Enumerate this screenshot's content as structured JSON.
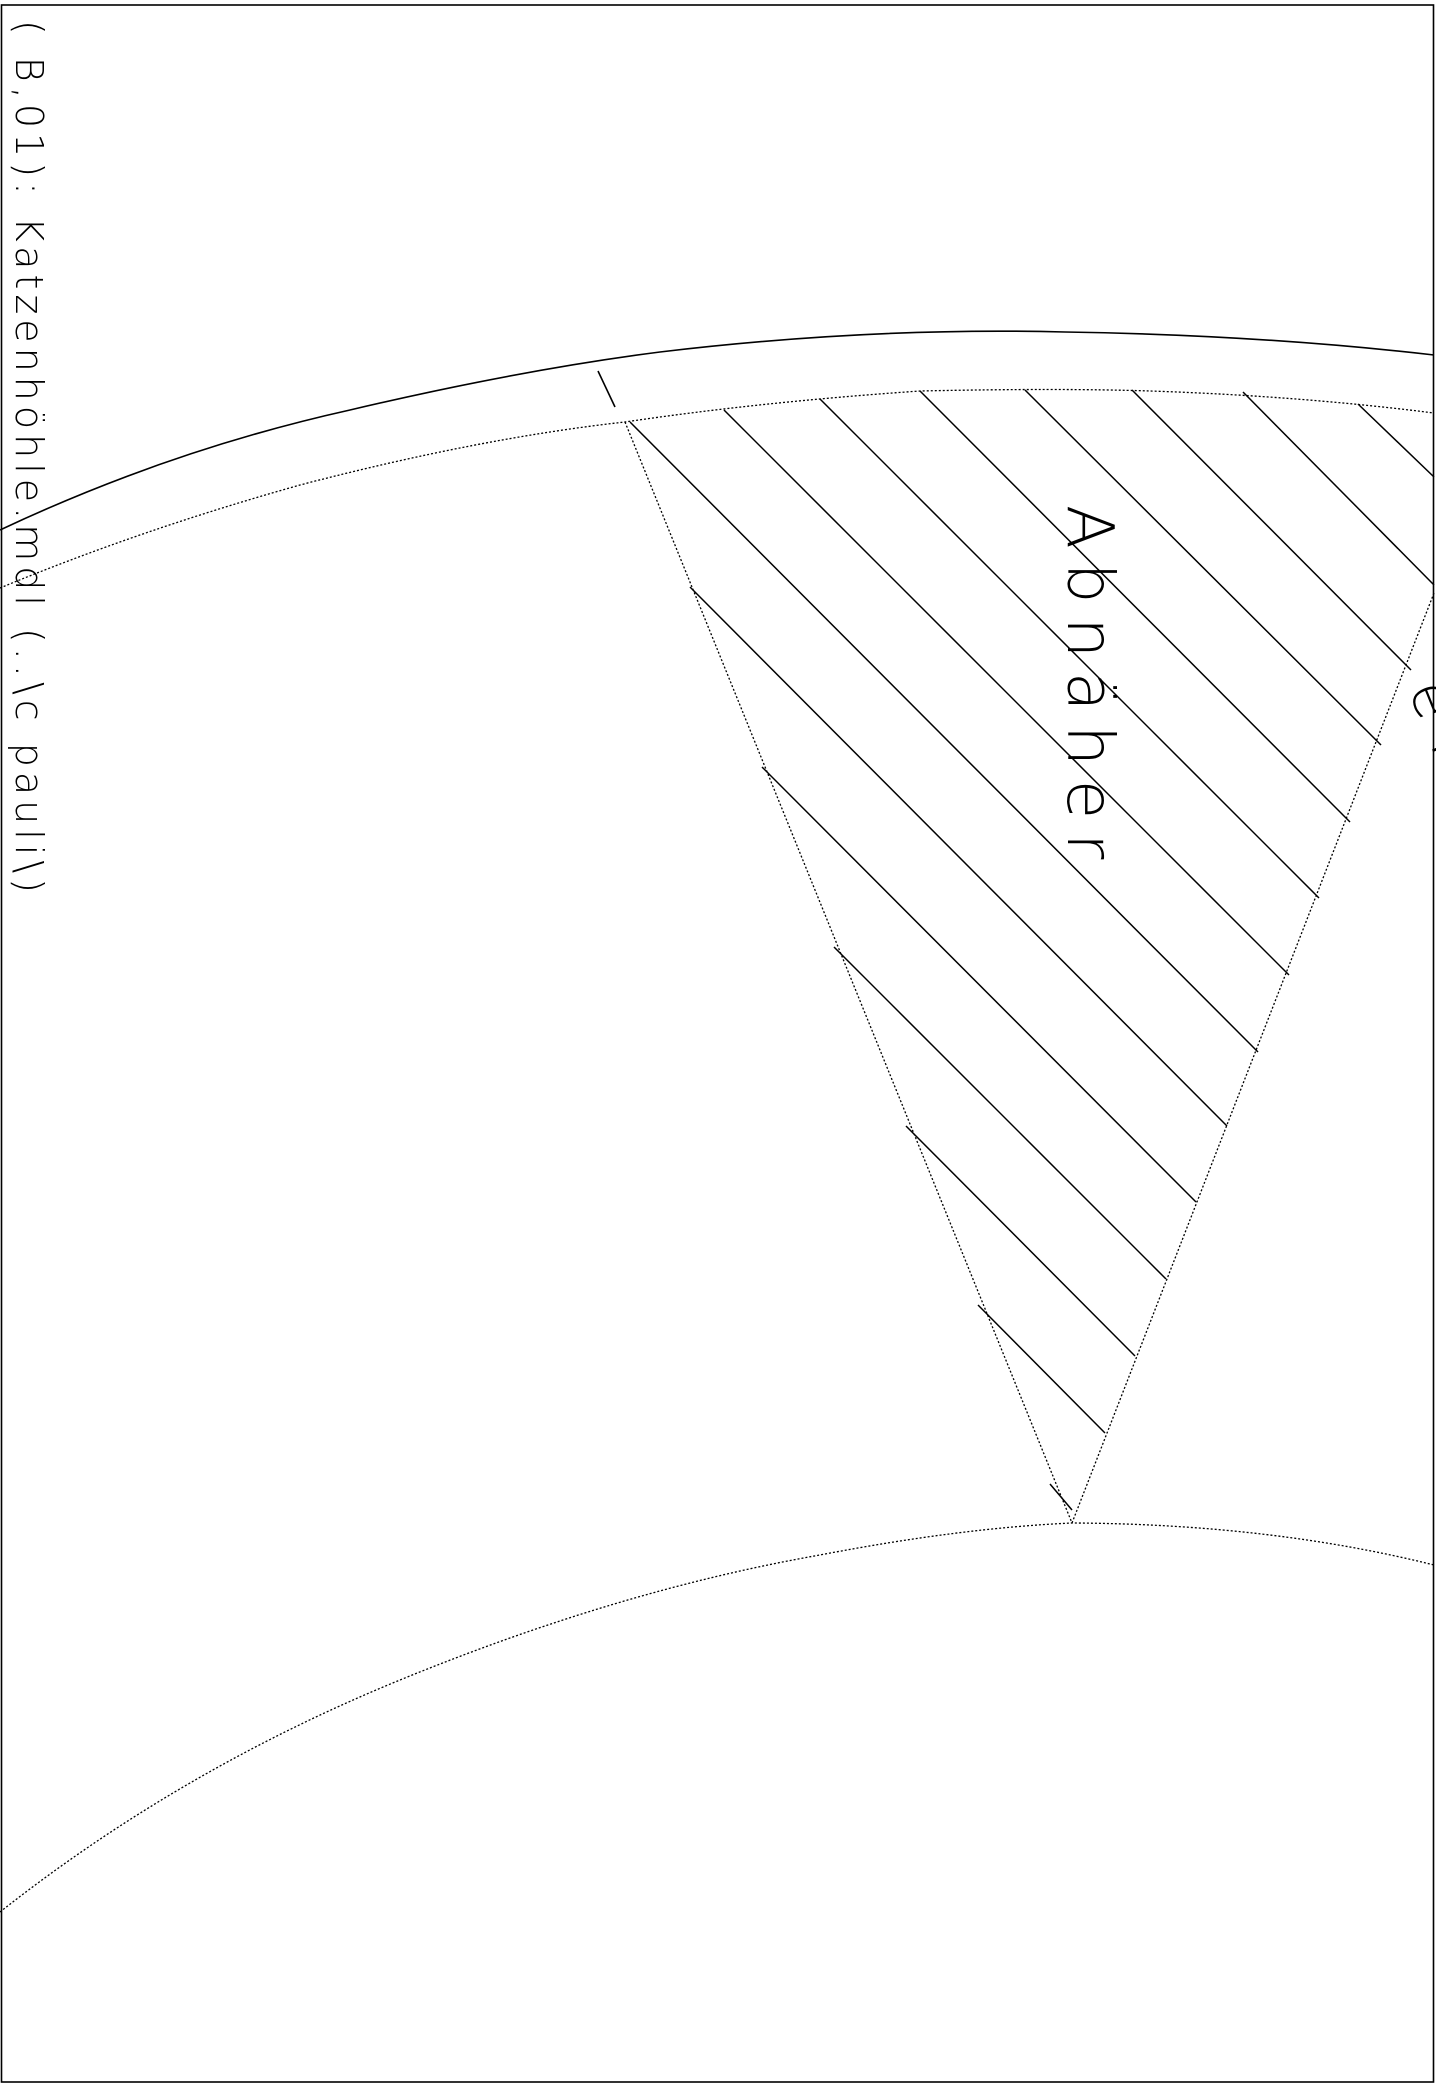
{
  "sheet": {
    "header_text": "( B,01): Katzenhöhle.mdl  (..\\c pauli\\)"
  },
  "pattern": {
    "sew_label": "Abnäher",
    "fold_label": "einlegen"
  },
  "colors": {
    "ink": "#000000",
    "paper": "#ffffff"
  }
}
